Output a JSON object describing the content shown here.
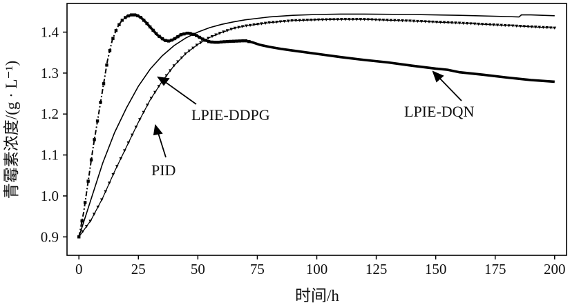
{
  "chart_data": {
    "type": "line",
    "title": "",
    "xlabel": "时间/h",
    "ylabel": "青霉素浓度/(g · L⁻¹)",
    "xlim": [
      -5,
      205
    ],
    "ylim": [
      0.855,
      1.47
    ],
    "x_ticks": [
      0,
      25,
      50,
      75,
      100,
      125,
      150,
      175,
      200
    ],
    "y_ticks": [
      0.9,
      1.0,
      1.1,
      1.2,
      1.3,
      1.4
    ],
    "x_tick_labels": [
      "0",
      "25",
      "50",
      "75",
      "100",
      "125",
      "150",
      "175",
      "200"
    ],
    "y_tick_labels": [
      "0.9",
      "1.0",
      "1.1",
      "1.2",
      "1.3",
      "1.4"
    ],
    "grid": false,
    "legend": "none",
    "series": [
      {
        "name": "LPIE-DQN",
        "style": "thick solid with square markers, dash-dot on rise",
        "color": "#000000",
        "x": [
          0,
          2,
          4,
          6,
          8,
          10,
          12,
          14,
          16,
          18,
          20,
          22,
          24,
          26,
          28,
          30,
          33,
          36,
          38,
          40,
          43,
          46,
          49,
          52,
          55,
          58,
          62,
          66,
          70,
          73,
          76,
          80,
          85,
          90,
          100,
          110,
          120,
          130,
          140,
          150,
          155,
          160,
          170,
          180,
          190,
          200
        ],
        "y": [
          0.9,
          0.96,
          1.04,
          1.12,
          1.19,
          1.26,
          1.33,
          1.38,
          1.41,
          1.428,
          1.438,
          1.442,
          1.442,
          1.436,
          1.425,
          1.412,
          1.393,
          1.38,
          1.378,
          1.383,
          1.394,
          1.398,
          1.393,
          1.383,
          1.376,
          1.375,
          1.377,
          1.378,
          1.379,
          1.375,
          1.369,
          1.364,
          1.359,
          1.355,
          1.347,
          1.339,
          1.332,
          1.326,
          1.318,
          1.311,
          1.308,
          1.302,
          1.296,
          1.289,
          1.283,
          1.279
        ]
      },
      {
        "name": "LPIE-DDPG",
        "style": "thin solid",
        "color": "#000000",
        "x": [
          0,
          5,
          10,
          15,
          20,
          25,
          30,
          35,
          40,
          45,
          50,
          55,
          60,
          65,
          70,
          80,
          90,
          100,
          110,
          120,
          140,
          160,
          180,
          185,
          186,
          190,
          200
        ],
        "y": [
          0.9,
          0.99,
          1.08,
          1.155,
          1.215,
          1.268,
          1.31,
          1.342,
          1.367,
          1.386,
          1.4,
          1.411,
          1.419,
          1.425,
          1.43,
          1.437,
          1.441,
          1.443,
          1.444,
          1.444,
          1.443,
          1.441,
          1.438,
          1.437,
          1.442,
          1.442,
          1.44
        ]
      },
      {
        "name": "PID",
        "style": "solid with downward triangle markers",
        "color": "#000000",
        "x": [
          0,
          5,
          10,
          15,
          20,
          25,
          30,
          35,
          40,
          45,
          50,
          55,
          60,
          65,
          70,
          80,
          90,
          100,
          110,
          120,
          140,
          160,
          180,
          200
        ],
        "y": [
          0.9,
          0.94,
          0.995,
          1.06,
          1.12,
          1.18,
          1.235,
          1.28,
          1.318,
          1.348,
          1.37,
          1.387,
          1.399,
          1.409,
          1.415,
          1.423,
          1.428,
          1.43,
          1.431,
          1.431,
          1.427,
          1.422,
          1.416,
          1.41
        ]
      }
    ],
    "annotations": [
      {
        "text": "LPIE-DDPG",
        "target": "LPIE-DDPG"
      },
      {
        "text": "LPIE-DQN",
        "target": "LPIE-DQN"
      },
      {
        "text": "PID",
        "target": "PID"
      }
    ]
  }
}
